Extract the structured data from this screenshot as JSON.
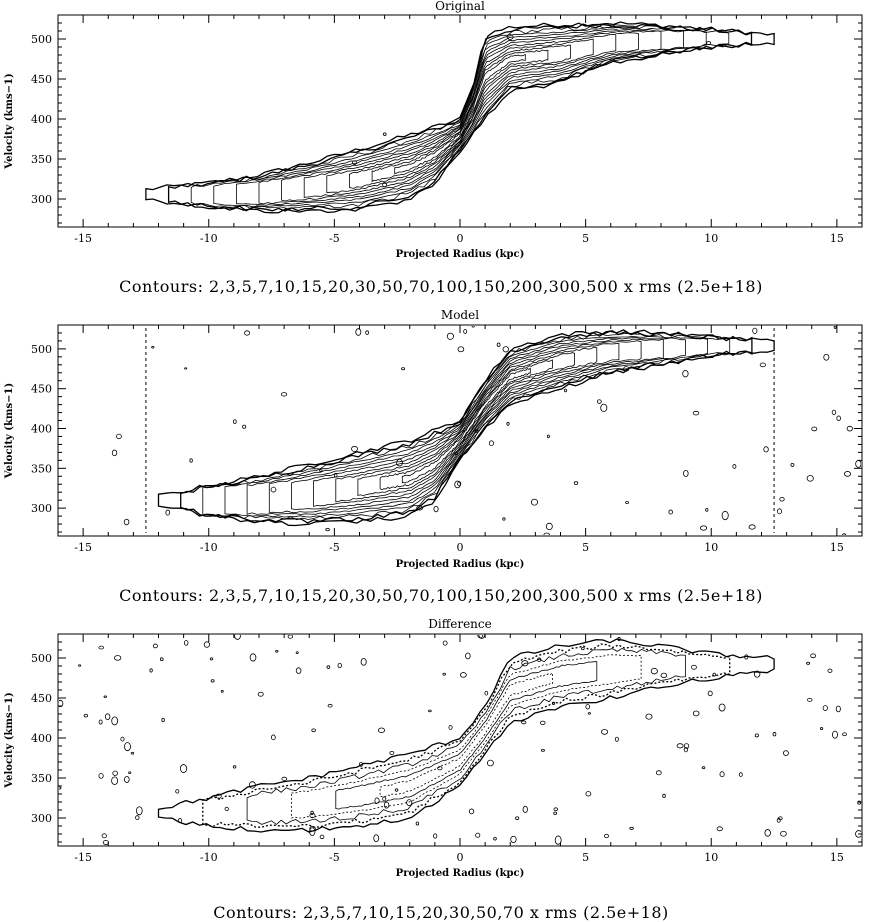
{
  "chart_data": [
    {
      "type": "contour",
      "title": "Original",
      "xlabel": "Projected Radius (kpc)",
      "ylabel": "Velocity (kms−1)",
      "xlim": [
        -16,
        16
      ],
      "ylim": [
        265,
        530
      ],
      "x_ticks": [
        -15,
        -10,
        -5,
        0,
        5,
        10,
        15
      ],
      "y_ticks": [
        300,
        350,
        400,
        450,
        500
      ],
      "caption": "Contours: 2,3,5,7,10,15,20,30,50,70,100,150,200,300,500 x rms (2.5e+18)",
      "contour_levels": [
        2,
        3,
        5,
        7,
        10,
        15,
        20,
        30,
        50,
        70,
        100,
        150,
        200,
        300,
        500
      ],
      "rms": 2.5e+18,
      "emission_outline": {
        "upper_edge": {
          "x": [
            -12.5,
            -10,
            -8,
            -6,
            -4,
            -2,
            0,
            0.5,
            1,
            2,
            4,
            6,
            8,
            10,
            12.5
          ],
          "y": [
            312,
            320,
            330,
            345,
            362,
            380,
            400,
            440,
            505,
            515,
            518,
            520,
            517,
            512,
            505
          ]
        },
        "lower_edge": {
          "x": [
            -12.5,
            -10,
            -8,
            -6,
            -4,
            -2,
            -1,
            0,
            1,
            2,
            4,
            6,
            8,
            10,
            12.5
          ],
          "y": [
            300,
            290,
            285,
            285,
            287,
            300,
            320,
            360,
            400,
            435,
            445,
            470,
            480,
            490,
            495
          ]
        }
      }
    },
    {
      "type": "contour",
      "title": "Model",
      "xlabel": "Projected Radius (kpc)",
      "ylabel": "Velocity (kms−1)",
      "xlim": [
        -16,
        16
      ],
      "ylim": [
        265,
        530
      ],
      "x_ticks": [
        -15,
        -10,
        -5,
        0,
        5,
        10,
        15
      ],
      "y_ticks": [
        300,
        350,
        400,
        450,
        500
      ],
      "caption": "Contours: 2,3,5,7,10,15,20,30,50,70,100,150,200,300,500 x rms (2.5e+18)",
      "contour_levels": [
        2,
        3,
        5,
        7,
        10,
        15,
        20,
        30,
        50,
        70,
        100,
        150,
        200,
        300,
        500
      ],
      "rms": 2.5e+18,
      "dashed_lines_x": [
        -12.5,
        12.5
      ],
      "emission_outline": {
        "upper_edge": {
          "x": [
            -12,
            -10,
            -8,
            -6,
            -4,
            -2,
            0,
            1,
            2,
            4,
            6,
            8,
            10,
            12.5
          ],
          "y": [
            315,
            328,
            340,
            355,
            370,
            385,
            410,
            460,
            500,
            518,
            522,
            520,
            515,
            510
          ]
        },
        "lower_edge": {
          "x": [
            -12,
            -10,
            -8,
            -6,
            -4,
            -2,
            -1,
            0,
            1,
            2,
            4,
            6,
            8,
            10,
            12.5
          ],
          "y": [
            305,
            290,
            283,
            280,
            283,
            290,
            310,
            360,
            400,
            430,
            450,
            470,
            480,
            492,
            498
          ]
        }
      }
    },
    {
      "type": "contour",
      "title": "Difference",
      "xlabel": "Projected Radius (kpc)",
      "ylabel": "Velocity (kms−1)",
      "xlim": [
        -16,
        16
      ],
      "ylim": [
        265,
        530
      ],
      "x_ticks": [
        -15,
        -10,
        -5,
        0,
        5,
        10,
        15
      ],
      "y_ticks": [
        300,
        350,
        400,
        450,
        500
      ],
      "caption": "Contours: 2,3,5,7,10,15,20,30,50,70 x rms (2.5e+18)",
      "contour_levels": [
        2,
        3,
        5,
        7,
        10,
        15,
        20,
        30,
        50,
        70
      ],
      "rms": 2.5e+18,
      "emission_outline": {
        "upper_edge": {
          "x": [
            -12,
            -10,
            -8,
            -6,
            -4,
            -2,
            0,
            1,
            2,
            4,
            6,
            8,
            10,
            12.5
          ],
          "y": [
            312,
            325,
            340,
            350,
            365,
            380,
            400,
            440,
            500,
            515,
            522,
            515,
            505,
            500
          ]
        },
        "lower_edge": {
          "x": [
            -12,
            -10,
            -8,
            -6,
            -4,
            -2,
            0,
            1,
            2,
            4,
            6,
            8,
            10,
            12.5
          ],
          "y": [
            300,
            290,
            285,
            285,
            290,
            300,
            340,
            380,
            420,
            440,
            450,
            465,
            475,
            485
          ]
        }
      }
    }
  ]
}
